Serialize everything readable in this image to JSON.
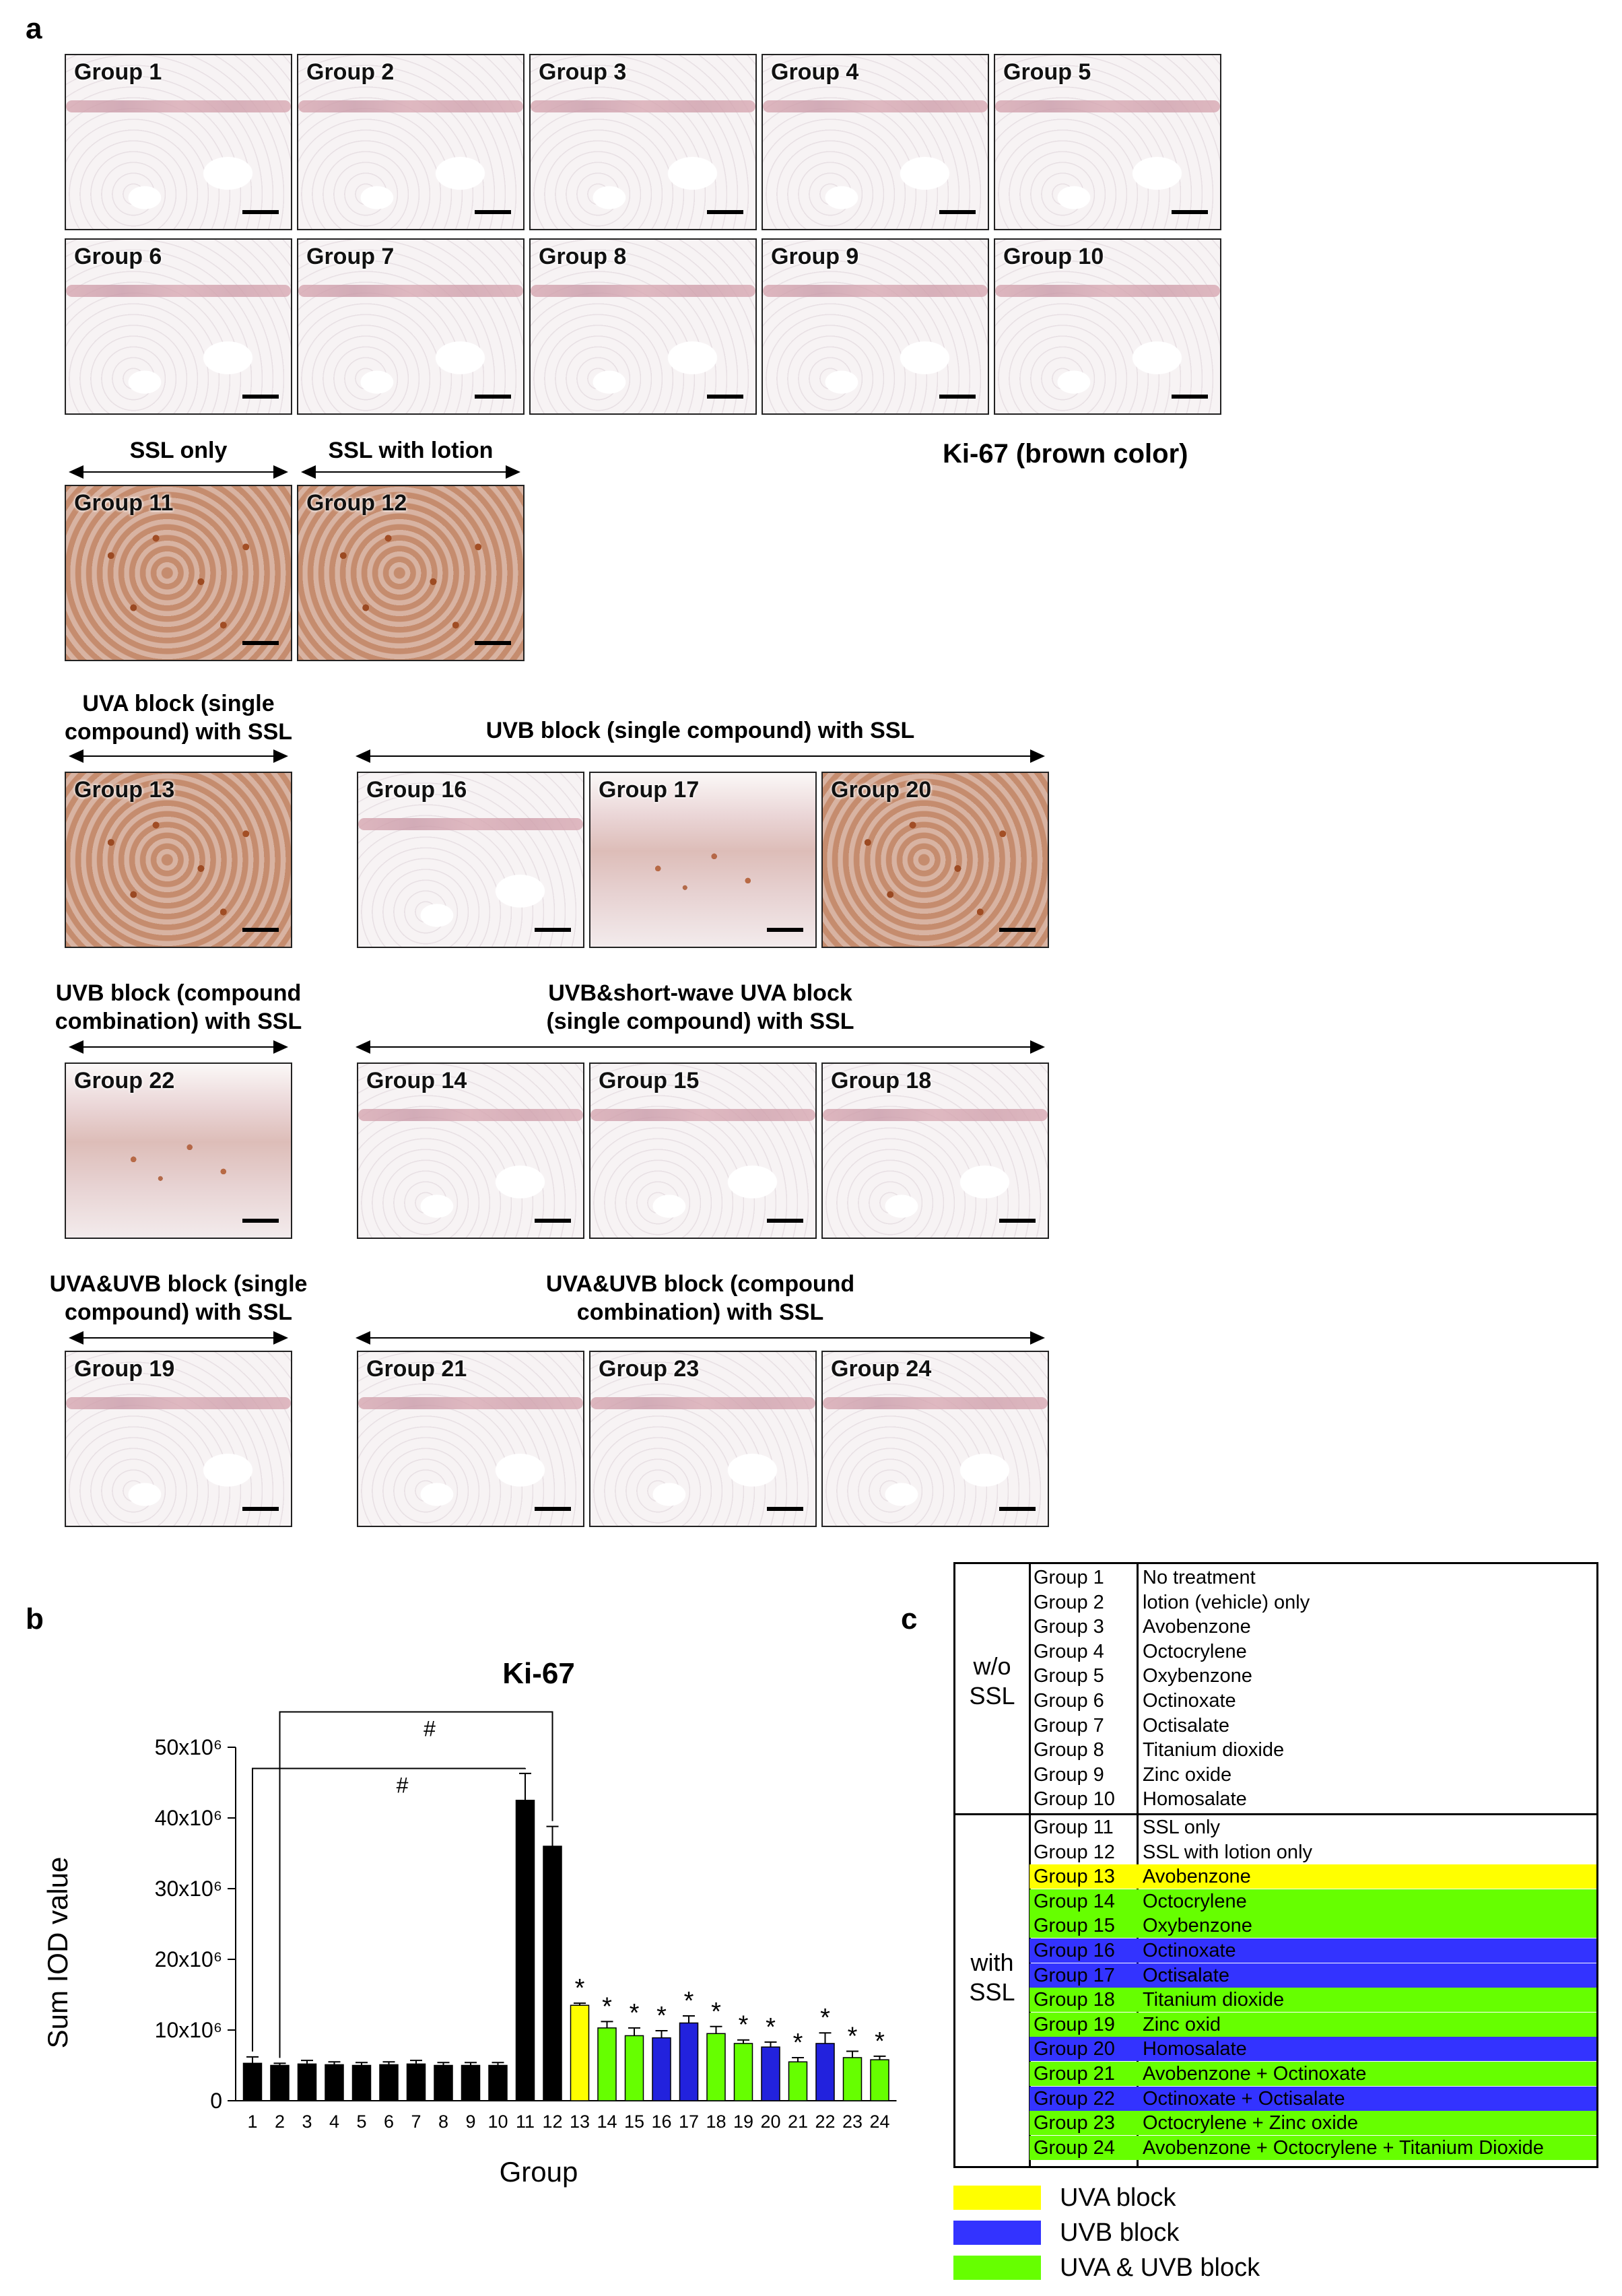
{
  "panel_a": {
    "letter": "a",
    "top_rows": [
      [
        "Group 1",
        "Group 2",
        "Group 3",
        "Group 4",
        "Group 5"
      ],
      [
        "Group 6",
        "Group 7",
        "Group 8",
        "Group 9",
        "Group 10"
      ]
    ],
    "ssl_only_label": "SSL only",
    "ssl_lotion_label": "SSL with lotion",
    "ki67_caption": "Ki-67 (brown color)",
    "group11": "Group 11",
    "group12": "Group 12",
    "uva_block_label": "UVA block (single compound) with SSL",
    "uvb_single_label": "UVB block (single compound) with SSL",
    "group13": "Group 13",
    "group16": "Group 16",
    "group17": "Group 17",
    "group20": "Group 20",
    "uvb_combo_label": "UVB block (compound combination) with SSL",
    "uvb_short_label": "UVB&short-wave UVA block (single compound) with SSL",
    "group22": "Group 22",
    "group14": "Group 14",
    "group15": "Group 15",
    "group18": "Group 18",
    "uvauvb_single_label": "UVA&UVB block (single compound) with SSL",
    "uvauvb_combo_label": "UVA&UVB block (compound combination) with SSL",
    "group19": "Group 19",
    "group21": "Group 21",
    "group23": "Group 23",
    "group24": "Group 24"
  },
  "panel_b": {
    "letter": "b",
    "chart_data": {
      "type": "bar",
      "title": "Ki-67",
      "xlabel": "Group",
      "ylabel": "Sum IOD value",
      "ylim": [
        0,
        50000000
      ],
      "yticks": [
        "0",
        "10x10⁶",
        "20x10⁶",
        "30x10⁶",
        "40x10⁶",
        "50x10⁶"
      ],
      "categories": [
        "1",
        "2",
        "3",
        "4",
        "5",
        "6",
        "7",
        "8",
        "9",
        "10",
        "11",
        "12",
        "13",
        "14",
        "15",
        "16",
        "17",
        "18",
        "19",
        "20",
        "21",
        "22",
        "23",
        "24"
      ],
      "values": [
        5300000,
        5000000,
        5200000,
        5100000,
        5000000,
        5100000,
        5200000,
        5000000,
        5000000,
        5000000,
        42500000,
        36000000,
        13500000,
        10300000,
        9200000,
        8900000,
        11000000,
        9500000,
        8100000,
        7600000,
        5500000,
        8100000,
        6100000,
        5800000
      ],
      "errors": [
        900000,
        300000,
        500000,
        400000,
        400000,
        400000,
        500000,
        400000,
        400000,
        400000,
        3800000,
        2800000,
        300000,
        900000,
        1100000,
        1000000,
        1000000,
        1000000,
        500000,
        700000,
        600000,
        1500000,
        900000,
        500000
      ],
      "colors": [
        "#000000",
        "#000000",
        "#000000",
        "#000000",
        "#000000",
        "#000000",
        "#000000",
        "#000000",
        "#000000",
        "#000000",
        "#000000",
        "#000000",
        "#ffff00",
        "#66ff00",
        "#66ff00",
        "#2222dd",
        "#2222dd",
        "#66ff00",
        "#66ff00",
        "#2222dd",
        "#66ff00",
        "#2222dd",
        "#66ff00",
        "#66ff00"
      ],
      "asterisk_from_group": 13,
      "asterisk": "*",
      "hash": "#",
      "comparisons": [
        [
          "1",
          "11"
        ],
        [
          "2",
          "12"
        ]
      ]
    }
  },
  "panel_c": {
    "letter": "c",
    "wo_ssl_label": "w/o SSL",
    "with_ssl_label": "with SSL",
    "wo_rows": [
      {
        "group": "Group 1",
        "treatment": "No treatment"
      },
      {
        "group": "Group 2",
        "treatment": "lotion (vehicle) only"
      },
      {
        "group": "Group 3",
        "treatment": "Avobenzone"
      },
      {
        "group": "Group 4",
        "treatment": "Octocrylene"
      },
      {
        "group": "Group 5",
        "treatment": "Oxybenzone"
      },
      {
        "group": "Group 6",
        "treatment": "Octinoxate"
      },
      {
        "group": "Group 7",
        "treatment": "Octisalate"
      },
      {
        "group": "Group 8",
        "treatment": "Titanium dioxide"
      },
      {
        "group": "Group 9",
        "treatment": "Zinc oxide"
      },
      {
        "group": "Group 10",
        "treatment": "Homosalate"
      }
    ],
    "with_rows": [
      {
        "group": "Group 11",
        "treatment": "SSL only",
        "color": "#ffffff"
      },
      {
        "group": "Group 12",
        "treatment": "SSL with lotion only",
        "color": "#ffffff"
      },
      {
        "group": "Group 13",
        "treatment": "Avobenzone",
        "color": "#ffff00"
      },
      {
        "group": "Group 14",
        "treatment": "Octocrylene",
        "color": "#66ff00"
      },
      {
        "group": "Group 15",
        "treatment": "Oxybenzone",
        "color": "#66ff00"
      },
      {
        "group": "Group 16",
        "treatment": "Octinoxate",
        "color": "#3333ff"
      },
      {
        "group": "Group 17",
        "treatment": "Octisalate",
        "color": "#3333ff"
      },
      {
        "group": "Group 18",
        "treatment": "Titanium dioxide",
        "color": "#66ff00"
      },
      {
        "group": "Group 19",
        "treatment": "Zinc oxid",
        "color": "#66ff00"
      },
      {
        "group": "Group 20",
        "treatment": "Homosalate",
        "color": "#3333ff"
      },
      {
        "group": "Group 21",
        "treatment": "Avobenzone + Octinoxate",
        "color": "#66ff00"
      },
      {
        "group": "Group 22",
        "treatment": "Octinoxate + Octisalate",
        "color": "#3333ff"
      },
      {
        "group": "Group 23",
        "treatment": "Octocrylene + Zinc oxide",
        "color": "#66ff00"
      },
      {
        "group": "Group 24",
        "treatment": "Avobenzone + Octocrylene + Titanium Dioxide",
        "color": "#66ff00"
      }
    ],
    "legend": [
      {
        "label": "UVA block",
        "color": "#ffff00"
      },
      {
        "label": "UVB block",
        "color": "#3333ff"
      },
      {
        "label": "UVA & UVB block",
        "color": "#66ff00"
      }
    ]
  }
}
